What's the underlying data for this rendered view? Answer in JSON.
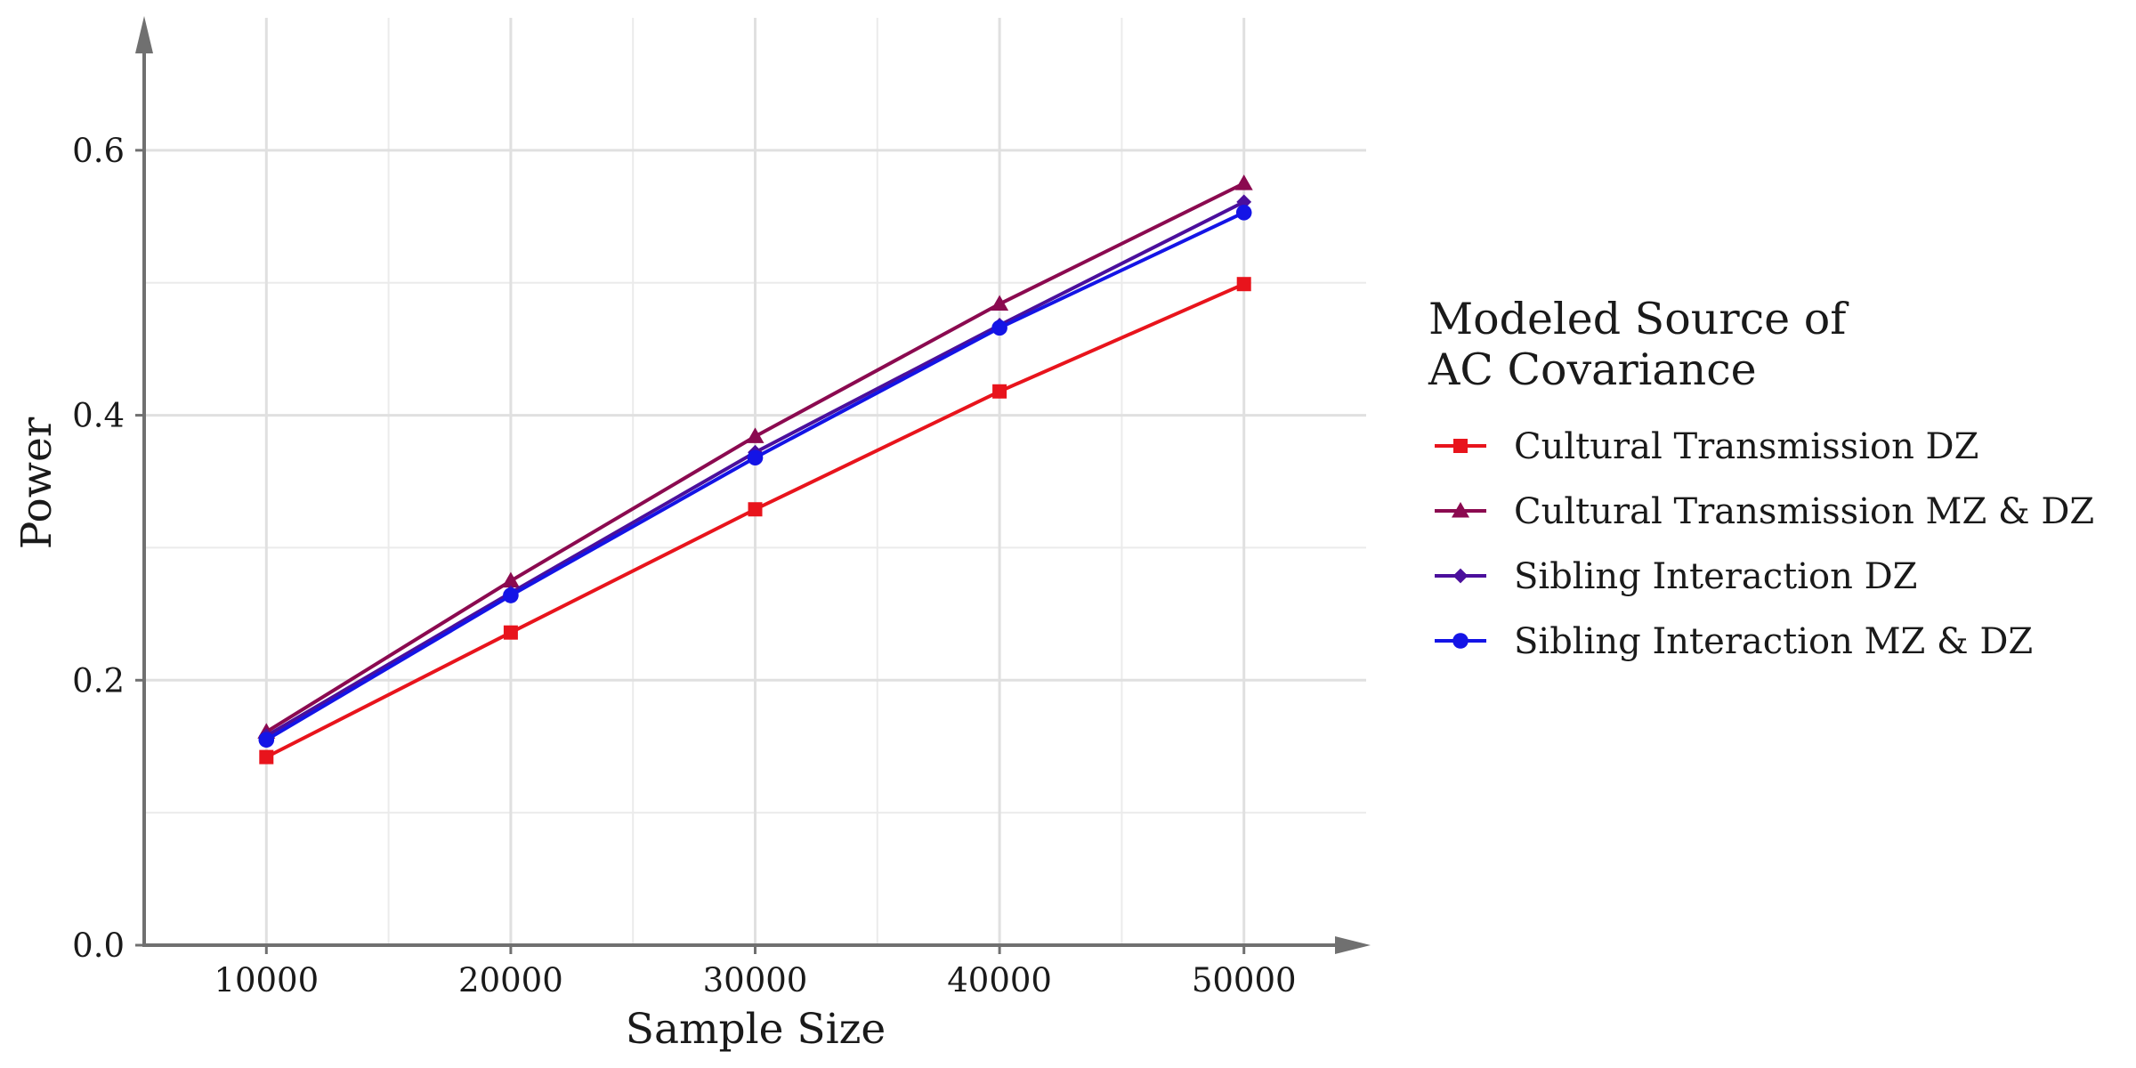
{
  "chart_data": {
    "type": "line",
    "title": "",
    "xlabel": "Sample Size",
    "ylabel": "Power",
    "x": [
      10000,
      20000,
      30000,
      40000,
      50000
    ],
    "xlim": [
      5000,
      55000
    ],
    "ylim": [
      0,
      0.7
    ],
    "x_ticks": [
      10000,
      20000,
      30000,
      40000,
      50000
    ],
    "x_tick_labels": [
      "10000",
      "20000",
      "30000",
      "40000",
      "50000"
    ],
    "y_ticks": [
      0.0,
      0.2,
      0.4,
      0.6
    ],
    "y_tick_labels": [
      "0.0",
      "0.2",
      "0.4",
      "0.6"
    ],
    "grid": true,
    "legend": {
      "position": "right",
      "title_lines": [
        "Modeled Source of",
        "AC Covariance"
      ]
    },
    "series": [
      {
        "name": "Cultural Transmission DZ",
        "color": "#e8141c",
        "marker": "square",
        "values": [
          0.142,
          0.236,
          0.329,
          0.418,
          0.499
        ]
      },
      {
        "name": "Cultural Transmission MZ & DZ",
        "color": "#8b0a50",
        "marker": "triangle",
        "values": [
          0.161,
          0.275,
          0.384,
          0.484,
          0.575
        ]
      },
      {
        "name": "Sibling Interaction DZ",
        "color": "#4b0f9c",
        "marker": "diamond",
        "values": [
          0.158,
          0.266,
          0.372,
          0.468,
          0.561
        ]
      },
      {
        "name": "Sibling Interaction MZ & DZ",
        "color": "#1414e6",
        "marker": "circle",
        "values": [
          0.155,
          0.264,
          0.368,
          0.466,
          0.553
        ]
      }
    ]
  }
}
